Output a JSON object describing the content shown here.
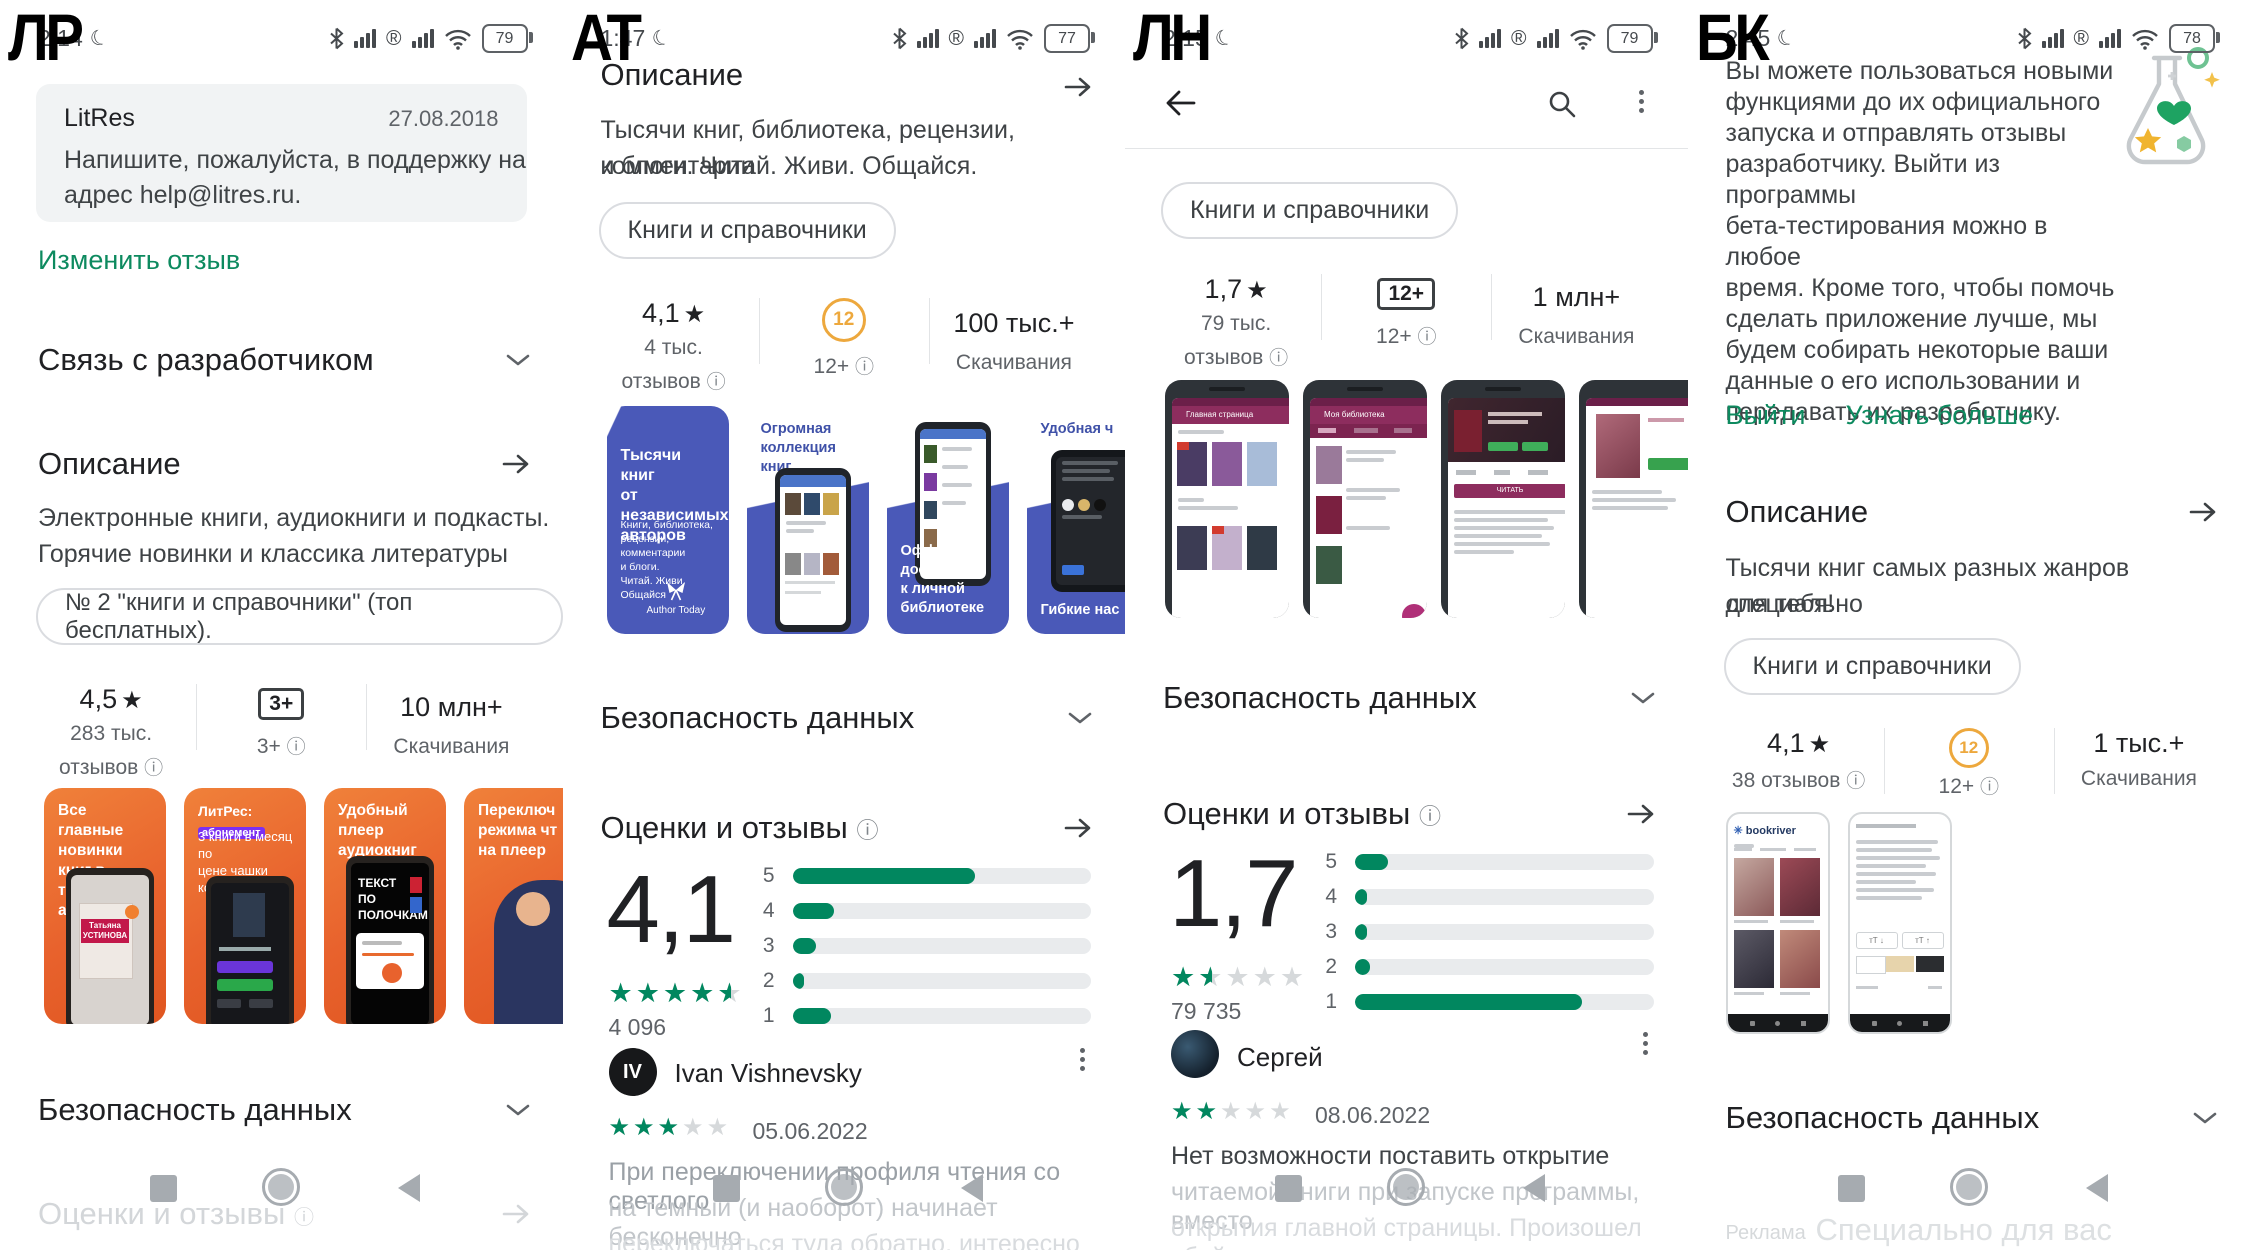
{
  "colors": {
    "accent_green": "#01875f",
    "link_green": "#0d8a5f",
    "badge_yellow": "#eda83d",
    "orange": "#e8622d",
    "blue": "#4a59b8",
    "maroon": "#8d2d5e",
    "bar_bg": "#e9ebed"
  },
  "panels": [
    {
      "overlay_label": "ЛР",
      "status": {
        "time": "2:14",
        "battery": "79"
      },
      "support_card": {
        "title": "LitRes",
        "date": "27.08.2018",
        "body_lines": [
          "Напишите, пожалуйста, в поддержку на",
          "адрес help@litres.ru."
        ]
      },
      "edit_review_link": "Изменить отзыв",
      "developer_contact_header": "Связь с разработчиком",
      "description_header": "Описание",
      "description_lines": [
        "Электронные книги, аудиокниги и подкасты.",
        "Горячие новинки и классика литературы"
      ],
      "rank_chip": "№ 2 \"книги и справочники\" (топ бесплатных).",
      "stats": {
        "rating": "4,5",
        "reviews_count": "283 тыс.",
        "reviews_label": "отзывов",
        "age_badge": "3+",
        "age_label": "3+",
        "downloads": "10 млн+",
        "downloads_label": "Скачивания"
      },
      "screenshots": [
        {
          "caption_lines": [
            "Все главные",
            "новинки книг в",
            "тексте и аудио"
          ],
          "cover_lines": [
            "Татьяна",
            "УСТИНОВА"
          ]
        },
        {
          "brand": "ЛитРес:",
          "brand_badge": "абонемент",
          "caption_lines": [
            "3 книги в месяц по",
            "цене чашки кофе"
          ]
        },
        {
          "caption_lines": [
            "Удобный плеер",
            "аудиокниг"
          ],
          "phone_lines": [
            "ТЕКСТ",
            "ПО",
            "ПОЛОЧКАМ"
          ]
        },
        {
          "caption_lines": [
            "Переключ",
            "режима чт",
            "на плеер"
          ]
        }
      ],
      "data_safety_header": "Безопасность данных",
      "ratings_header_faded": "Оценки и отзывы"
    },
    {
      "overlay_label": "АТ",
      "status": {
        "time": "1:47",
        "battery": "77"
      },
      "description_header": "Описание",
      "description_lines": [
        "Тысячи книг, библиотека, рецензии, комментарии",
        "и блоги. Читай. Живи. Общайся."
      ],
      "category_chip": "Книги и справочники",
      "stats": {
        "rating": "4,1",
        "reviews_count": "4 тыс.",
        "reviews_label": "отзывов",
        "age_badge": "12",
        "age_label": "12+",
        "downloads": "100 тыс.+",
        "downloads_label": "Скачивания"
      },
      "screenshots": [
        {
          "heading_lines": [
            "Тысячи книг",
            "от независимых",
            "авторов"
          ],
          "sub_lines": [
            "Книги, библиотека,",
            "рецензии, комментарии",
            "и блоги."
          ],
          "sub2": "Читай. Живи. Общайся",
          "logo": "Author Today"
        },
        {
          "caption_lines": [
            "Огромная",
            "коллекция книг"
          ]
        },
        {
          "caption_lines": [
            "Оффлайн-доступ",
            "к личной библиотеке"
          ]
        },
        {
          "caption_top": "Удобная ч",
          "caption_bottom": "Гибкие нас"
        }
      ],
      "data_safety_header": "Безопасность данных",
      "ratings_header": "Оценки и отзывы",
      "rating_block": {
        "score": "4,1",
        "stars_pct": 90,
        "count": "4 096",
        "bars": [
          {
            "label": "5",
            "pct": 61
          },
          {
            "label": "4",
            "pct": 14
          },
          {
            "label": "3",
            "pct": 8
          },
          {
            "label": "2",
            "pct": 4
          },
          {
            "label": "1",
            "pct": 13
          }
        ]
      },
      "review": {
        "avatar_initials": "IV",
        "name": "Ivan Vishnevsky",
        "stars_pct": 60,
        "date": "05.06.2022",
        "lines": [
          "При переключении профиля чтения со светлого",
          "на темный (и наоборот) начинает бесконечно",
          "переключаться туда обратно, интересно скольк..."
        ]
      }
    },
    {
      "overlay_label": "ЛН",
      "status": {
        "time": "2:15",
        "battery": "79"
      },
      "category_chip": "Книги и справочники",
      "stats": {
        "rating": "1,7",
        "reviews_count": "79 тыс.",
        "reviews_label": "отзывов",
        "age_badge": "12+",
        "age_label": "12+",
        "downloads": "1 млн+",
        "downloads_label": "Скачивания"
      },
      "screenshots": [
        {
          "appbar": "Главная страница"
        },
        {
          "appbar": "Моя библиотека"
        },
        {
          "button": "ЧИТАТЬ"
        },
        {}
      ],
      "data_safety_header": "Безопасность данных",
      "ratings_header": "Оценки и отзывы",
      "rating_block": {
        "score": "1,7",
        "stars_pct": 30,
        "count": "79 735",
        "bars": [
          {
            "label": "5",
            "pct": 11
          },
          {
            "label": "4",
            "pct": 4
          },
          {
            "label": "3",
            "pct": 4
          },
          {
            "label": "2",
            "pct": 5
          },
          {
            "label": "1",
            "pct": 76
          }
        ]
      },
      "review": {
        "name": "Сергей",
        "stars_pct": 40,
        "date": "08.06.2022",
        "lines": [
          "Нет возможности поставить открытие",
          "читаемой книги при запуске программы, вместо",
          "открытия главной страницы. Произошел сбой с..."
        ]
      }
    },
    {
      "overlay_label": "БК",
      "status": {
        "time": "2:45",
        "battery": "78"
      },
      "beta_lines": [
        "Вы можете пользоваться новыми",
        "функциями до их официального",
        "запуска и отправлять отзывы",
        "разработчику. Выйти из программы",
        "бета-тестирования можно в любое",
        "время. Кроме того, чтобы помочь",
        "сделать приложение лучше, мы",
        "будем собирать некоторые ваши",
        "данные о его использовании и",
        "передавать их разработчику."
      ],
      "beta_links": {
        "exit": "Выйти",
        "learn_more": "Узнать больше"
      },
      "description_header": "Описание",
      "description_lines": [
        "Тысячи книг самых разных жанров специально",
        "для тебя!"
      ],
      "category_chip": "Книги и справочники",
      "stats": {
        "rating": "4,1",
        "reviews_count": "38 отзывов",
        "age_badge": "12",
        "age_label": "12+",
        "downloads": "1 тыс.+",
        "downloads_label": "Скачивания"
      },
      "screenshots": [
        {
          "logo": "bookriver"
        },
        {}
      ],
      "data_safety_header": "Безопасность данных",
      "footer": {
        "ad_label": "Реклама",
        "title": "Специально для вас"
      }
    }
  ]
}
